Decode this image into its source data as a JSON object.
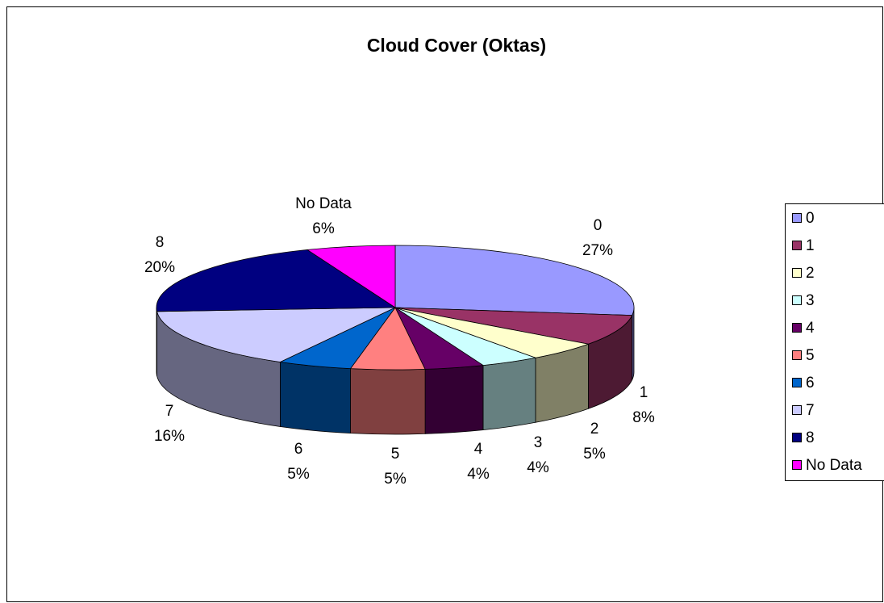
{
  "chart_data": {
    "type": "pie",
    "title": "Cloud Cover (Oktas)",
    "categories": [
      "0",
      "1",
      "2",
      "3",
      "4",
      "5",
      "6",
      "7",
      "8",
      "No Data"
    ],
    "values": [
      27,
      8,
      5,
      4,
      4,
      5,
      5,
      16,
      20,
      6
    ],
    "value_labels": [
      "27%",
      "8%",
      "5%",
      "4%",
      "4%",
      "5%",
      "5%",
      "16%",
      "20%",
      "6%"
    ],
    "colors": [
      "#9999ff",
      "#993366",
      "#ffffcc",
      "#ccffff",
      "#660066",
      "#ff8080",
      "#0066cc",
      "#ccccff",
      "#000080",
      "#ff00ff"
    ],
    "legend": "right"
  }
}
